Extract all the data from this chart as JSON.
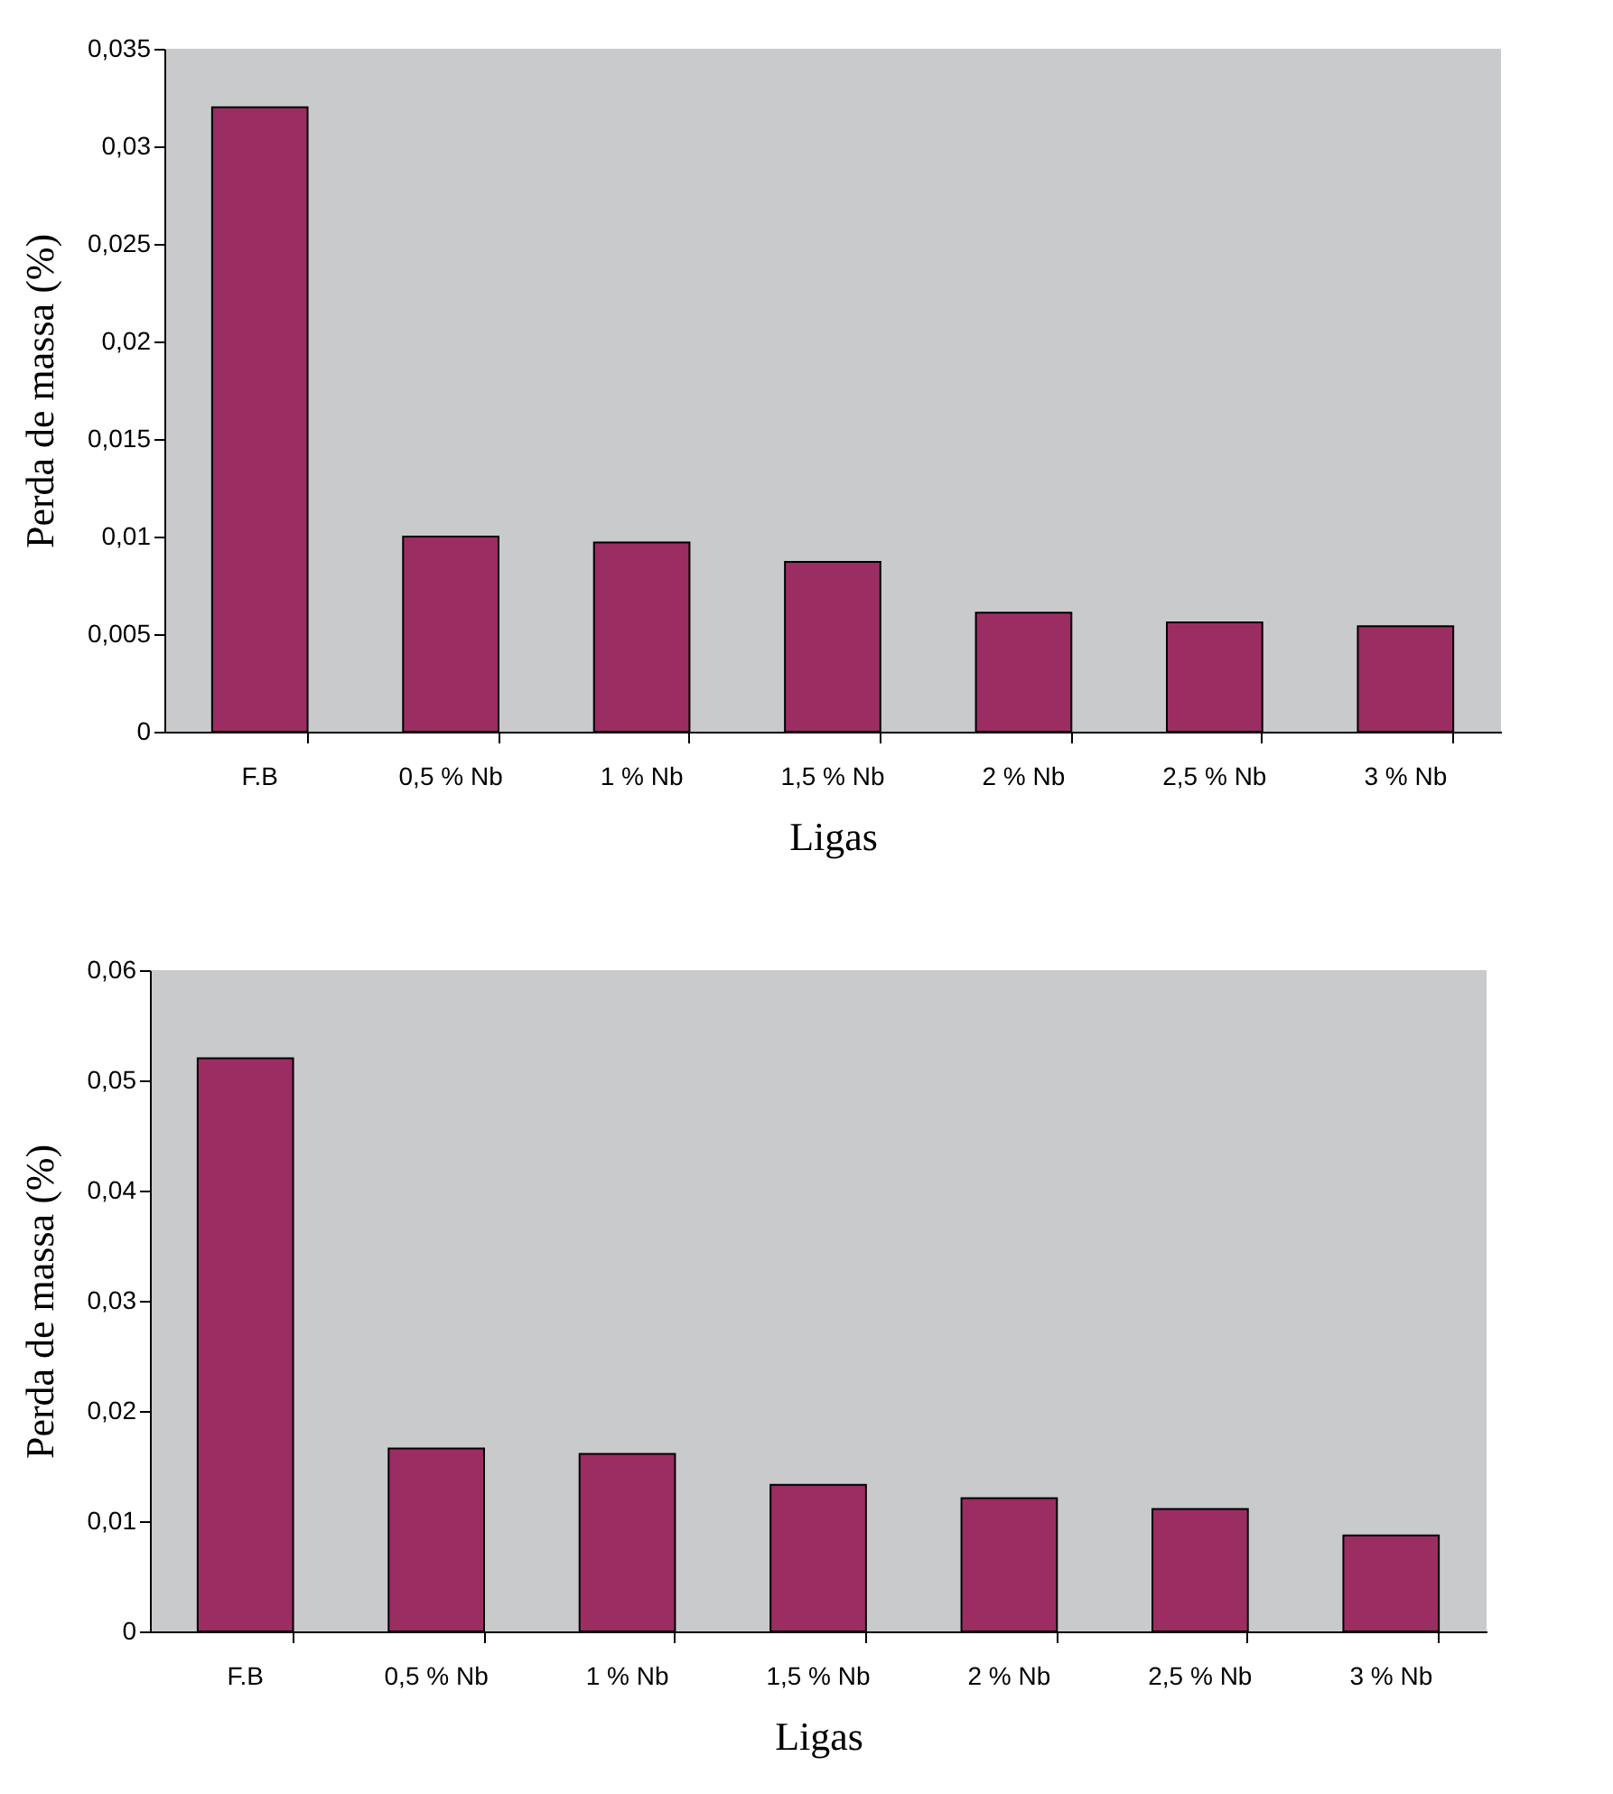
{
  "chart_data": [
    {
      "type": "bar",
      "xlabel": "Ligas",
      "ylabel": "Perda de massa (%)",
      "categories": [
        "F.B",
        "0,5 % Nb",
        "1 % Nb",
        "1,5 % Nb",
        "2 % Nb",
        "2,5 % Nb",
        "3 % Nb"
      ],
      "series": [
        {
          "color": "#9b2d62",
          "values": [
            0.032,
            0.01,
            0.0097,
            0.0087,
            0.0061,
            0.0056,
            0.0054
          ]
        }
      ],
      "ylim": [
        0,
        0.035
      ],
      "yticks": [
        0,
        {
          "value": 0.005,
          "label": "0,005"
        },
        {
          "value": 0.01,
          "label": "0,01"
        },
        {
          "value": 0.015,
          "label": "0,015"
        },
        {
          "value": 0.02,
          "label": "0,02"
        },
        {
          "value": 0.025,
          "label": "0,025"
        },
        {
          "value": 0.03,
          "label": "0,03"
        },
        {
          "value": 0.035,
          "label": "0,035"
        }
      ],
      "grid": false,
      "legend": false
    },
    {
      "type": "bar",
      "xlabel": "Ligas",
      "ylabel": "Perda de massa (%)",
      "categories": [
        "F.B",
        "0,5 % Nb",
        "1 % Nb",
        "1,5 % Nb",
        "2 % Nb",
        "2,5 % Nb",
        "3 % Nb"
      ],
      "series": [
        {
          "color": "#9b2d62",
          "values": [
            0.052,
            0.0166,
            0.0161,
            0.0133,
            0.0121,
            0.0111,
            0.0087
          ]
        }
      ],
      "ylim": [
        0,
        0.06
      ],
      "yticks": [
        0,
        {
          "value": 0.01,
          "label": "0,01"
        },
        {
          "value": 0.02,
          "label": "0,02"
        },
        {
          "value": 0.03,
          "label": "0,03"
        },
        {
          "value": 0.04,
          "label": "0,04"
        },
        {
          "value": 0.05,
          "label": "0,05"
        },
        {
          "value": 0.06,
          "label": "0,06"
        }
      ],
      "grid": false,
      "legend": false
    }
  ]
}
